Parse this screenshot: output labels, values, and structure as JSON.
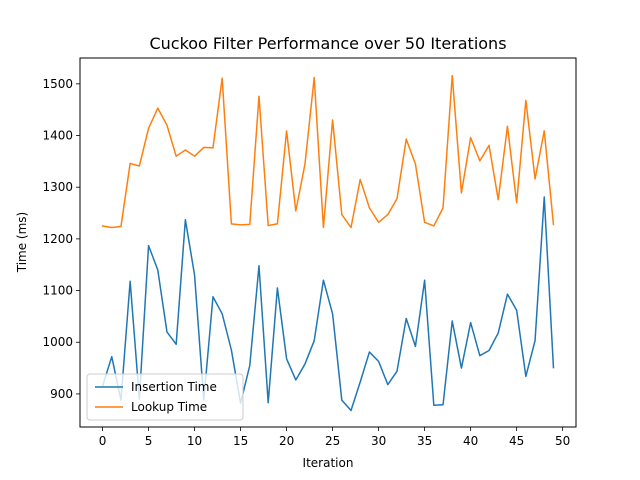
{
  "chart_data": {
    "type": "line",
    "title": "Cuckoo Filter Performance over 50 Iterations",
    "xlabel": "Iteration",
    "ylabel": "Time (ms)",
    "xlim": [
      -2.45,
      51.45
    ],
    "ylim": [
      836,
      1550
    ],
    "x_ticks": [
      0,
      5,
      10,
      15,
      20,
      25,
      30,
      35,
      40,
      45,
      50
    ],
    "y_ticks": [
      900,
      1000,
      1100,
      1200,
      1300,
      1400,
      1500
    ],
    "grid": false,
    "legend_position": "bottom-left",
    "x": [
      0,
      1,
      2,
      3,
      4,
      5,
      6,
      7,
      8,
      9,
      10,
      11,
      12,
      13,
      14,
      15,
      16,
      17,
      18,
      19,
      20,
      21,
      22,
      23,
      24,
      25,
      26,
      27,
      28,
      29,
      30,
      31,
      32,
      33,
      34,
      35,
      36,
      37,
      38,
      39,
      40,
      41,
      42,
      43,
      44,
      45,
      46,
      47,
      48,
      49
    ],
    "series": [
      {
        "name": "Insertion Time",
        "color": "#1f77b4",
        "values": [
          915,
          972,
          888,
          1118,
          890,
          1187,
          1140,
          1020,
          996,
          1237,
          1130,
          888,
          1088,
          1055,
          985,
          882,
          955,
          1148,
          883,
          1105,
          968,
          927,
          958,
          1003,
          1120,
          1055,
          888,
          868,
          923,
          981,
          963,
          918,
          944,
          1046,
          992,
          1120,
          878,
          879,
          1041,
          950,
          1038,
          974,
          984,
          1018,
          1093,
          1062,
          934,
          1003,
          1281,
          951
        ]
      },
      {
        "name": "Lookup Time",
        "color": "#ff7f0e",
        "values": [
          1225,
          1222,
          1224,
          1346,
          1341,
          1414,
          1453,
          1420,
          1360,
          1372,
          1360,
          1377,
          1376,
          1511,
          1229,
          1227,
          1228,
          1476,
          1226,
          1229,
          1409,
          1254,
          1345,
          1512,
          1222,
          1430,
          1247,
          1222,
          1315,
          1260,
          1232,
          1247,
          1278,
          1393,
          1345,
          1232,
          1225,
          1260,
          1516,
          1289,
          1396,
          1351,
          1381,
          1276,
          1418,
          1270,
          1468,
          1316,
          1409,
          1228
        ]
      }
    ]
  }
}
